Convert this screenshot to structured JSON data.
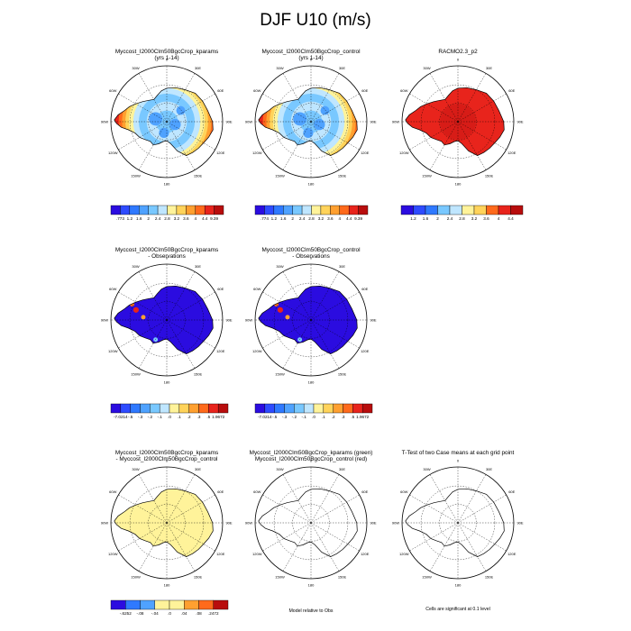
{
  "title": "DJF U10 (m/s)",
  "colors": {
    "seq": [
      "#2b0ce0",
      "#2e4bff",
      "#2f79ff",
      "#4fa2ff",
      "#79c8ff",
      "#bfe6ff",
      "#fff39a",
      "#ffd35a",
      "#ffa030",
      "#ff6a1c",
      "#e8241c",
      "#b80d0d"
    ],
    "ocean": "#ffffff",
    "land_outline": "#000000",
    "diff_fill": "#fff39a",
    "bias_fill": "#2b0ce0"
  },
  "panels": [
    {
      "id": "p1",
      "title": "Myccost_I2000Clm50BgcCrop_kparams",
      "subtitle": "(yrs 1-14)",
      "fill": "speed"
    },
    {
      "id": "p2",
      "title": "Myccost_I2000Clm50BgcCrop_control",
      "subtitle": "(yrs 1-14)",
      "fill": "speed"
    },
    {
      "id": "p3",
      "title": "RACMO2.3_p2",
      "subtitle": "",
      "fill": "obs"
    },
    {
      "id": "p4",
      "title": "Myccost_I2000Clm50BgcCrop_kparams",
      "subtitle": "- Observations",
      "fill": "bias"
    },
    {
      "id": "p5",
      "title": "Myccost_I2000Clm50BgcCrop_control",
      "subtitle": "- Observations",
      "fill": "bias"
    },
    {
      "id": "p6",
      "title": "Myccost_I2000Clm50BgcCrop_kparams",
      "subtitle": "- Myccost_I2000Clm50BgcCrop_control",
      "fill": "diff"
    },
    {
      "id": "p7",
      "title": "Myccost_I2000Clm50BgcCrop_kparams (green)",
      "subtitle": "Myccost_I2000Clm50BgcCrop_control (red)",
      "fill": "none"
    },
    {
      "id": "p8",
      "title": "T-Test of two Case means at each grid point",
      "subtitle": "",
      "fill": "none"
    }
  ],
  "lon_labels": [
    "0",
    "30E",
    "60E",
    "90E",
    "120E",
    "150E",
    "180",
    "150W",
    "120W",
    "90W",
    "60W",
    "30W"
  ],
  "colorbars": [
    {
      "id": "cb1",
      "labels": [
        ".773",
        "1.2",
        "1.6",
        "2",
        "2.4",
        "2.8",
        "3.2",
        "3.6",
        "4",
        "4.4",
        "9.39"
      ]
    },
    {
      "id": "cb2",
      "labels": [
        ".774",
        "1.2",
        "1.6",
        "2",
        "2.4",
        "2.8",
        "3.2",
        "3.6",
        "4",
        "4.4",
        "9.39"
      ]
    },
    {
      "id": "cb3",
      "labels": [
        "1.2",
        "1.6",
        "2",
        "2.4",
        "2.8",
        "3.2",
        "3.6",
        "4",
        "4.4"
      ]
    },
    {
      "id": "cb4",
      "labels": [
        "-7.0214",
        "-.5",
        "-.3",
        "-.2",
        "-.1",
        ".0",
        ".1",
        ".2",
        ".3",
        ".5",
        "1.9672"
      ]
    },
    {
      "id": "cb5",
      "labels": [
        "-7.0214",
        "-.5",
        "-.3",
        "-.2",
        "-.1",
        ".0",
        ".1",
        ".2",
        ".3",
        ".5",
        "1.9672"
      ]
    },
    {
      "id": "cb6",
      "labels": [
        "-.6252",
        "-.08",
        "-.04",
        ".0",
        ".04",
        ".08",
        ".2472"
      ]
    }
  ],
  "footnotes": {
    "model_relative": "Model relative to Obs",
    "significance": "Cells are significant at 0.1 level"
  },
  "chart_data": [
    {
      "type": "heatmap",
      "title": "Myccost_I2000Clm50BgcCrop_kparams",
      "subtitle": "(yrs 1-14)",
      "variable": "U10",
      "units": "m/s",
      "value_range": [
        0.773,
        9.39
      ],
      "contour_levels": [
        1.2,
        1.6,
        2,
        2.4,
        2.8,
        3.2,
        3.6,
        4,
        4.4
      ],
      "colorbar": "horizontal, below panel"
    },
    {
      "type": "heatmap",
      "title": "Myccost_I2000Clm50BgcCrop_control",
      "subtitle": "(yrs 1-14)",
      "variable": "U10",
      "units": "m/s",
      "value_range": [
        0.774,
        9.39
      ],
      "contour_levels": [
        1.2,
        1.6,
        2,
        2.4,
        2.8,
        3.2,
        3.6,
        4,
        4.4
      ],
      "colorbar": "horizontal, below panel"
    },
    {
      "type": "heatmap",
      "title": "RACMO2.3_p2",
      "variable": "U10",
      "units": "m/s",
      "contour_levels": [
        1.2,
        1.6,
        2,
        2.4,
        2.8,
        3.2,
        3.6,
        4,
        4.4
      ],
      "colorbar": "horizontal, below panel"
    },
    {
      "type": "heatmap",
      "title": "Myccost_I2000Clm50BgcCrop_kparams",
      "subtitle": "- Observations",
      "value_range": [
        -7.0214,
        1.9672
      ],
      "contour_levels": [
        -0.5,
        -0.3,
        -0.2,
        -0.1,
        0.0,
        0.1,
        0.2,
        0.3,
        0.5
      ],
      "colorbar": "horizontal, below panel"
    },
    {
      "type": "heatmap",
      "title": "Myccost_I2000Clm50BgcCrop_control",
      "subtitle": "- Observations",
      "value_range": [
        -7.0214,
        1.9672
      ],
      "contour_levels": [
        -0.5,
        -0.3,
        -0.2,
        -0.1,
        0.0,
        0.1,
        0.2,
        0.3,
        0.5
      ],
      "colorbar": "horizontal, below panel"
    },
    {
      "type": "heatmap",
      "title": "Myccost_I2000Clm50BgcCrop_kparams",
      "subtitle": "- Myccost_I2000Clm50BgcCrop_control",
      "value_range": [
        -0.6252,
        0.2472
      ],
      "contour_levels": [
        -0.08,
        -0.04,
        0.0,
        0.04,
        0.08
      ],
      "colorbar": "horizontal, below panel"
    },
    {
      "type": "heatmap",
      "title": "Myccost_I2000Clm50BgcCrop_kparams (green)",
      "subtitle": "Myccost_I2000Clm50BgcCrop_control (red)",
      "note": "Model relative to Obs"
    },
    {
      "type": "heatmap",
      "title": "T-Test of two Case means at each grid point",
      "note": "Cells are significant at 0.1 level"
    }
  ]
}
